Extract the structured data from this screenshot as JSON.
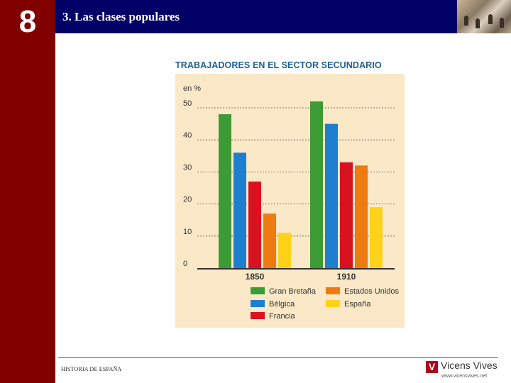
{
  "chapter": {
    "number": "8"
  },
  "header": {
    "title": "3. Las clases populares"
  },
  "footer": {
    "text": "HISTORIA DE ESPAÑA",
    "logo_letter": "V",
    "logo_name": "Vicens Vives",
    "logo_url": "www.vicensvives.net"
  },
  "chart_data": {
    "type": "bar",
    "title": "TRABAJADORES EN EL SECTOR SECUNDARIO",
    "ylabel": "en %",
    "xlabel": "",
    "ylim": [
      0,
      50
    ],
    "yticks": [
      "0",
      "10",
      "20",
      "30",
      "40",
      "50"
    ],
    "ytick_values": [
      0,
      10,
      20,
      30,
      40,
      50
    ],
    "categories": [
      "1850",
      "1910"
    ],
    "series": [
      {
        "name": "Gran Bretaña",
        "color": "#3d9b35",
        "values": [
          48,
          52
        ]
      },
      {
        "name": "Bélgica",
        "color": "#1d7fd0",
        "values": [
          36,
          45
        ]
      },
      {
        "name": "Francia",
        "color": "#d9121f",
        "values": [
          27,
          33
        ]
      },
      {
        "name": "Estados Unidos",
        "color": "#ee7a10",
        "values": [
          17,
          32
        ]
      },
      {
        "name": "España",
        "color": "#ffd21a",
        "values": [
          11,
          19
        ]
      }
    ],
    "legend": "bottom",
    "grid": true
  }
}
